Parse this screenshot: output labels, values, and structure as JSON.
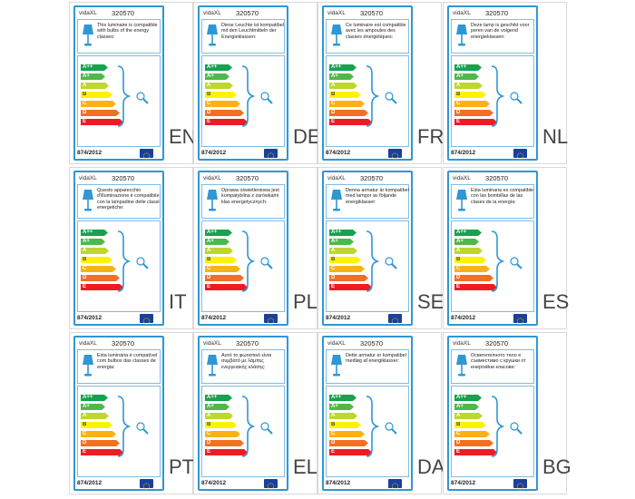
{
  "brand": "vidaXL",
  "model": "320570",
  "regulation": "874/2012",
  "colors": {
    "frame": "#2f97d3",
    "A++": "#16a24f",
    "A+": "#50b848",
    "A": "#bed62f",
    "B": "#fff200",
    "C": "#fbb116",
    "D": "#f36f22",
    "E": "#ed1c24"
  },
  "energy_classes": [
    "A++",
    "A+",
    "A",
    "B",
    "C",
    "D",
    "E"
  ],
  "icons": {
    "lamp": "table-lamp-icon",
    "bulb": "light-bulb-icon",
    "flag": "eu-flag-icon"
  },
  "labels": [
    {
      "lang": "EN",
      "text": "This luminaire is compatible with bulbs of the energy classes:"
    },
    {
      "lang": "DE",
      "text": "Diese Leuchte ist kompatibel mit den Leuchtmitteln der Energieklassen:"
    },
    {
      "lang": "FR",
      "text": "Ce luminaire est compatible avec les ampoules des classes énergétiques:"
    },
    {
      "lang": "NL",
      "text": "Deze lamp is geschikt voor peren van de volgend energieklassen:"
    },
    {
      "lang": "IT",
      "text": "Questo apparecchio d'illuminazione è compatibile con la lampadine delle classi energetiche:"
    },
    {
      "lang": "PL",
      "text": "Oprawa oświetleniowa jest kompatybilna z żarówkami klas energetycznych:"
    },
    {
      "lang": "SE",
      "text": "Denna armatur är kompatibel med lampor av följande energiklasser:"
    },
    {
      "lang": "ES",
      "text": "Esta luminaria es compatible con las bombillas de las clases de la energía:"
    },
    {
      "lang": "PT",
      "text": "Esta luminária é compatível com bulbos das classes de energia:"
    },
    {
      "lang": "EL",
      "text": "Αυτό το φωτιστικό είναι συμβατό με λάμπες ενεργειακής κλάσης:"
    },
    {
      "lang": "DA",
      "text": "Dette armatur er kompatibel medløg af energiklasser:"
    },
    {
      "lang": "BG",
      "text": "Осветителното тяло е съвместимо с крушки от енергийни класове:"
    }
  ]
}
